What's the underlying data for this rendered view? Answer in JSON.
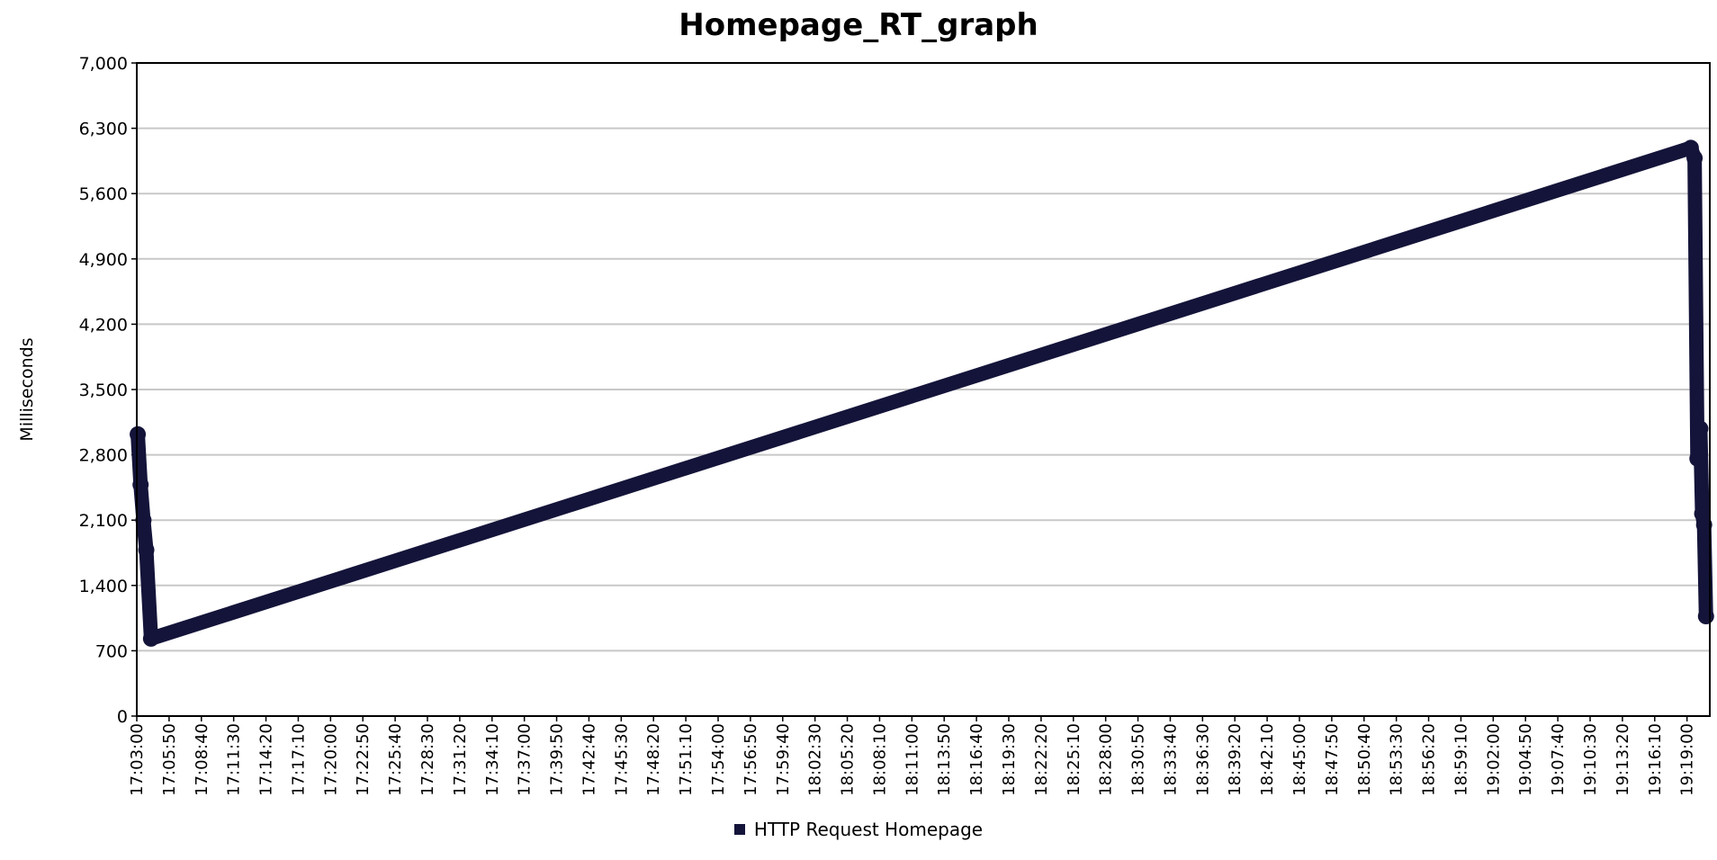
{
  "chart_data": {
    "type": "line",
    "title": "Homepage_RT_graph",
    "xlabel": "",
    "ylabel": "Milliseconds",
    "ylim": [
      0,
      7000
    ],
    "yticks": [
      "0",
      "700",
      "1,400",
      "2,100",
      "2,800",
      "3,500",
      "4,200",
      "4,900",
      "5,600",
      "6,300",
      "7,000"
    ],
    "ytick_values": [
      0,
      700,
      1400,
      2100,
      2800,
      3500,
      4200,
      4900,
      5600,
      6300,
      7000
    ],
    "xlim": [
      "17:03:00",
      "19:21:00"
    ],
    "xticks": [
      "17:03:00",
      "17:05:50",
      "17:08:40",
      "17:11:30",
      "17:14:20",
      "17:17:10",
      "17:20:00",
      "17:22:50",
      "17:25:40",
      "17:28:30",
      "17:31:20",
      "17:34:10",
      "17:37:00",
      "17:39:50",
      "17:42:40",
      "17:45:30",
      "17:48:20",
      "17:51:10",
      "17:54:00",
      "17:56:50",
      "17:59:40",
      "18:02:30",
      "18:05:20",
      "18:08:10",
      "18:11:00",
      "18:13:50",
      "18:16:40",
      "18:19:30",
      "18:22:20",
      "18:25:10",
      "18:28:00",
      "18:30:50",
      "18:33:40",
      "18:36:30",
      "18:39:20",
      "18:42:10",
      "18:45:00",
      "18:47:50",
      "18:50:40",
      "18:53:30",
      "18:56:20",
      "18:59:10",
      "19:02:00",
      "19:04:50",
      "19:07:40",
      "19:10:30",
      "19:13:20",
      "19:16:10",
      "19:19:00"
    ],
    "grid": true,
    "legend_position": "bottom",
    "series": [
      {
        "name": "HTTP Request Homepage",
        "color": "#14143a",
        "x": [
          "17:03:05",
          "17:03:20",
          "17:03:35",
          "17:03:50",
          "17:04:15",
          "19:19:20",
          "19:19:40",
          "19:19:55",
          "19:20:00",
          "19:20:10",
          "19:20:20",
          "19:20:30",
          "19:20:40"
        ],
        "y": [
          3020,
          2480,
          2100,
          1780,
          830,
          6090,
          5980,
          2760,
          3030,
          3080,
          2170,
          2050,
          1070
        ]
      }
    ]
  }
}
